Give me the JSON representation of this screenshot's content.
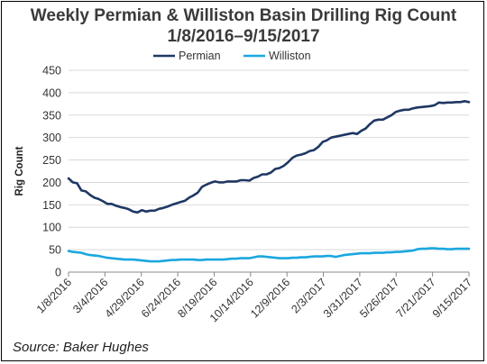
{
  "chart_data": {
    "type": "line",
    "title_line1": "Weekly Permian & Williston Basin Drilling Rig Count",
    "title_line2": "1/8/2016–9/15/2017",
    "xlabel": "",
    "ylabel": "Rig Count",
    "ylim": [
      0,
      450
    ],
    "yticks": [
      0,
      50,
      100,
      150,
      200,
      250,
      300,
      350,
      400,
      450
    ],
    "xticks": [
      "1/8/2016",
      "3/4/2016",
      "4/29/2016",
      "6/24/2016",
      "8/19/2016",
      "10/14/2016",
      "12/9/2016",
      "2/3/2017",
      "3/31/2017",
      "5/26/2017",
      "7/21/2017",
      "9/15/2017"
    ],
    "grid": true,
    "legend_position": "top",
    "series": [
      {
        "name": "Permian",
        "color": "#1f3864",
        "values": [
          209,
          200,
          198,
          182,
          180,
          172,
          166,
          163,
          158,
          152,
          152,
          148,
          145,
          143,
          140,
          135,
          133,
          138,
          135,
          137,
          137,
          141,
          143,
          146,
          150,
          153,
          156,
          159,
          166,
          171,
          177,
          190,
          195,
          199,
          202,
          200,
          200,
          202,
          202,
          202,
          205,
          205,
          204,
          210,
          213,
          218,
          218,
          222,
          230,
          232,
          237,
          245,
          255,
          260,
          262,
          265,
          270,
          272,
          279,
          290,
          294,
          300,
          302,
          304,
          306,
          308,
          310,
          308,
          315,
          320,
          330,
          338,
          340,
          340,
          345,
          350,
          357,
          360,
          362,
          362,
          365,
          367,
          368,
          369,
          370,
          372,
          378,
          377,
          378,
          378,
          379,
          379,
          381,
          379
        ]
      },
      {
        "name": "Williston",
        "color": "#1aa7e0",
        "values": [
          47,
          45,
          44,
          43,
          40,
          38,
          37,
          36,
          34,
          32,
          31,
          30,
          29,
          28,
          28,
          28,
          27,
          26,
          25,
          24,
          24,
          24,
          25,
          26,
          27,
          27,
          28,
          28,
          28,
          28,
          27,
          27,
          28,
          28,
          28,
          28,
          28,
          29,
          30,
          30,
          31,
          31,
          31,
          33,
          35,
          35,
          34,
          33,
          32,
          31,
          31,
          31,
          32,
          32,
          33,
          33,
          34,
          35,
          35,
          35,
          36,
          36,
          34,
          36,
          38,
          39,
          40,
          41,
          42,
          42,
          42,
          43,
          43,
          43,
          44,
          44,
          45,
          45,
          46,
          47,
          48,
          51,
          52,
          52,
          53,
          53,
          52,
          52,
          51,
          51,
          52,
          52,
          52,
          52
        ]
      }
    ]
  },
  "source_text": "Source: Baker Hughes"
}
